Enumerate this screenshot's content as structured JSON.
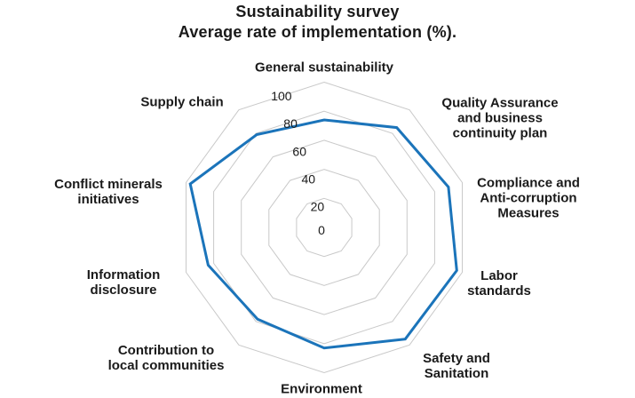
{
  "title": {
    "line1": "Sustainability survey",
    "line2": "Average rate of implementation (%)."
  },
  "chart_data": {
    "type": "radar",
    "title": "Sustainability survey Average rate of implementation (%).",
    "axes": [
      {
        "label": "General sustainability",
        "lines": [
          "General sustainability"
        ]
      },
      {
        "label": "Quality Assurance and business continuity plan",
        "lines": [
          "Quality Assurance",
          "and business",
          "continuity plan"
        ]
      },
      {
        "label": "Compliance and Anti-corruption Measures",
        "lines": [
          "Compliance and",
          "Anti-corruption",
          "Measures"
        ]
      },
      {
        "label": "Labor standards",
        "lines": [
          "Labor",
          "standards"
        ]
      },
      {
        "label": "Safety and Sanitation",
        "lines": [
          "Safety and",
          "Sanitation"
        ]
      },
      {
        "label": "Environment",
        "lines": [
          "Environment"
        ]
      },
      {
        "label": "Contribution to local communities",
        "lines": [
          "Contribution to",
          "local communities"
        ]
      },
      {
        "label": "Information disclosure",
        "lines": [
          "Information",
          "disclosure"
        ]
      },
      {
        "label": "Conflict minerals initiatives",
        "lines": [
          "Conflict minerals",
          "initiatives"
        ]
      },
      {
        "label": "Supply chain",
        "lines": [
          "Supply chain"
        ]
      }
    ],
    "series": [
      {
        "name": "Average rate of implementation (%)",
        "values": [
          74,
          85,
          90,
          96,
          95,
          83,
          78,
          84,
          97,
          79
        ]
      }
    ],
    "ticks": [
      0,
      20,
      40,
      60,
      80,
      100
    ],
    "range": [
      0,
      100
    ],
    "grid": "concentric decagon rings, no radial spokes",
    "legend": "none",
    "colors": {
      "line": "#1b74ba",
      "grid": "#c9c9c9",
      "text": "#1a1a1a",
      "background": "#ffffff"
    }
  }
}
